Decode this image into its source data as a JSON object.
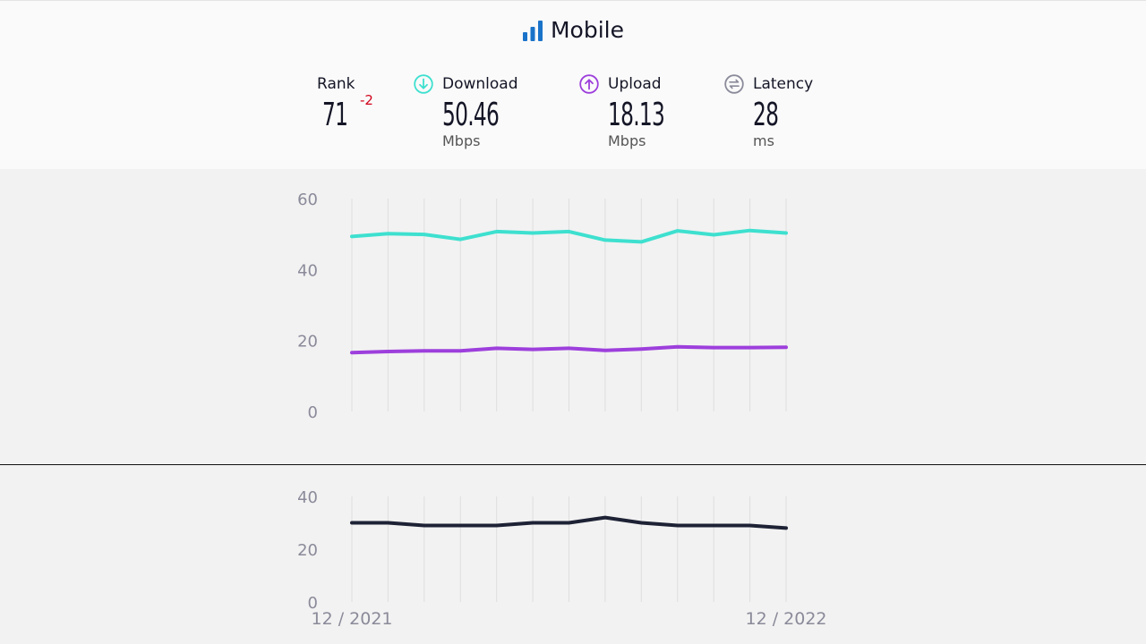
{
  "header": {
    "title": "Mobile",
    "title_icon": "signal-bars-icon"
  },
  "metrics": {
    "rank": {
      "label": "Rank",
      "value": "71",
      "change": "-2"
    },
    "download": {
      "label": "Download",
      "value": "50.46",
      "unit": "Mbps",
      "icon": "download-arrow-icon",
      "color": "#3ee0cf"
    },
    "upload": {
      "label": "Upload",
      "value": "18.13",
      "unit": "Mbps",
      "icon": "upload-arrow-icon",
      "color": "#9d3fdc"
    },
    "latency": {
      "label": "Latency",
      "value": "28",
      "unit": "ms",
      "icon": "latency-icon",
      "color": "#8a8a9a"
    }
  },
  "chart_data": [
    {
      "type": "line",
      "x": [
        "12 / 2021",
        "",
        "",
        "",
        "",
        "",
        "",
        "",
        "",
        "",
        "",
        "",
        "12 / 2022"
      ],
      "ylim": [
        0,
        60
      ],
      "yticks": [
        0,
        20,
        40,
        60
      ],
      "grid": true,
      "series": [
        {
          "key": "download",
          "color": "#3ee0cf",
          "values": [
            49.3,
            50.1,
            49.9,
            48.5,
            50.7,
            50.3,
            50.7,
            48.3,
            47.8,
            50.9,
            49.8,
            51.0,
            50.3
          ]
        },
        {
          "key": "upload",
          "color": "#9d3fdc",
          "values": [
            16.6,
            16.9,
            17.1,
            17.1,
            17.8,
            17.5,
            17.8,
            17.2,
            17.6,
            18.2,
            18.0,
            18.0,
            18.1
          ]
        }
      ]
    },
    {
      "type": "line",
      "x": [
        "12 / 2021",
        "",
        "",
        "",
        "",
        "",
        "",
        "",
        "",
        "",
        "",
        "",
        "12 / 2022"
      ],
      "ylim": [
        0,
        40
      ],
      "yticks": [
        0,
        20,
        40
      ],
      "grid": true,
      "series": [
        {
          "key": "latency",
          "color": "#1e2235",
          "values": [
            30,
            30,
            29,
            29,
            29,
            30,
            30,
            32,
            30,
            29,
            29,
            29,
            28
          ]
        }
      ]
    }
  ],
  "xaxis_labels": {
    "start": "12 / 2021",
    "end": "12 / 2022"
  }
}
